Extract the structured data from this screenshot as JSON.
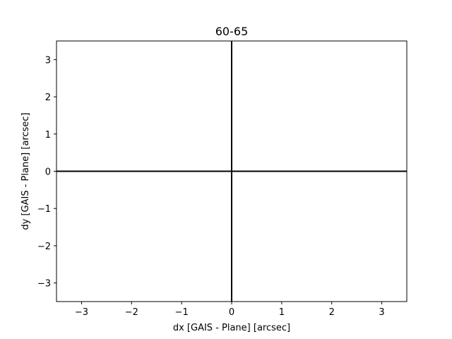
{
  "chart_data": {
    "type": "scatter",
    "title": "60-65",
    "xlabel": "dx [GAIS - Plane] [arcsec]",
    "ylabel": "dy [GAIS - Plane] [arcsec]",
    "xlim": [
      -3.5,
      3.5
    ],
    "ylim": [
      -3.5,
      3.5
    ],
    "xticks": [
      -3,
      -2,
      -1,
      0,
      1,
      2,
      3
    ],
    "yticks": [
      -3,
      -2,
      -1,
      0,
      1,
      2,
      3
    ],
    "xtick_labels": [
      "−3",
      "−2",
      "−1",
      "0",
      "1",
      "2",
      "3"
    ],
    "ytick_labels": [
      "−3",
      "−2",
      "−1",
      "0",
      "1",
      "2",
      "3"
    ],
    "reference_lines": {
      "vertical_x": 0,
      "horizontal_y": 0
    },
    "series": [],
    "grid": false,
    "legend": "none",
    "colors": {
      "reference_line": "#000000",
      "axes": "#000000"
    }
  }
}
